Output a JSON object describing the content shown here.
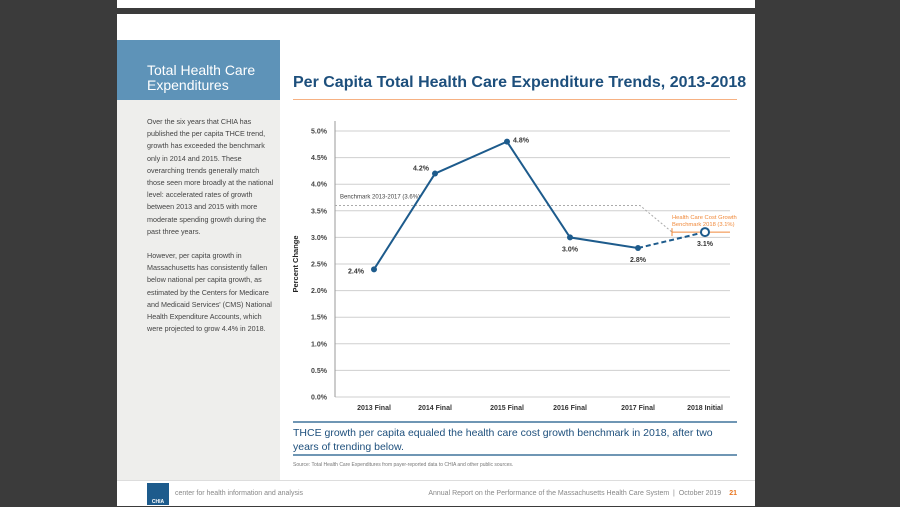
{
  "sidebar": {
    "heading": "Total Health Care Expenditures",
    "paragraphs": [
      "Over the six years that CHIA has published the per capita THCE trend, growth has exceeded the benchmark only in 2014 and 2015. These overarching trends generally match those seen more broadly at the national level: accelerated rates of growth between 2013 and 2015 with more moderate spending growth during the past three years.",
      "However, per capita growth in Massachusetts has consistently fallen below national per capita growth, as estimated by the Centers for Medicare and Medicaid Services' (CMS) National Health Expenditure Accounts, which were projected to grow 4.4% in 2018."
    ]
  },
  "main": {
    "title": "Per Capita Total Health Care Expenditure Trends, 2013-2018",
    "caption": "THCE growth per capita equaled the health care cost growth benchmark in 2018, after two years of trending below.",
    "source": "Source: Total Health Care Expenditures from payer-reported data to CHIA and other public sources."
  },
  "footer": {
    "logo": "CHIA",
    "org": "center for health information and analysis",
    "report": "Annual Report on the Performance of the Massachusetts Health Care System",
    "date": "October 2019",
    "page": "21"
  },
  "chart_data": {
    "type": "line",
    "title": "Per Capita Total Health Care Expenditure Trends, 2013-2018",
    "ylabel": "Percent Change",
    "ylim": [
      0,
      5
    ],
    "yticks": [
      "0.0%",
      "0.5%",
      "1.0%",
      "1.5%",
      "2.0%",
      "2.5%",
      "3.0%",
      "3.5%",
      "4.0%",
      "4.5%",
      "5.0%"
    ],
    "categories": [
      "2013 Final",
      "2014 Final",
      "2015 Final",
      "2016 Final",
      "2017 Final",
      "2018 Initial"
    ],
    "values": [
      2.4,
      4.2,
      4.8,
      3.0,
      2.8,
      3.1
    ],
    "labels": [
      "2.4%",
      "4.2%",
      "4.8%",
      "3.0%",
      "2.8%",
      "3.1%"
    ],
    "grid": true,
    "benchmark1": {
      "label": "Benchmark 2013-2017 (3.6%)",
      "value": 3.6
    },
    "benchmark2": {
      "label": [
        "Health Care Cost Growth",
        "Benchmark 2018 (3.1%)"
      ],
      "value": 3.1
    },
    "colors": {
      "line": "#1d5b8c",
      "benchmark2018": "#f0893a",
      "benchmark": "#aaaaaa"
    }
  }
}
